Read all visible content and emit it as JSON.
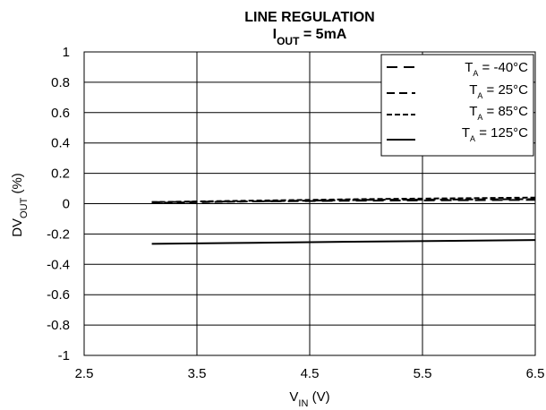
{
  "chart_data": {
    "type": "line",
    "title_line1": "LINE REGULATION",
    "title_line2": {
      "main": "I",
      "sub": "OUT",
      "rest": " = 5mA"
    },
    "xlabel": {
      "main": "V",
      "sub": "IN",
      "rest": " (V)"
    },
    "ylabel": {
      "main": "DV",
      "sub": "OUT",
      "rest": " (%)"
    },
    "xlim": [
      2.5,
      6.5
    ],
    "ylim": [
      -1,
      1
    ],
    "xticks": [
      2.5,
      3.5,
      4.5,
      5.5,
      6.5
    ],
    "xtick_labels": [
      "2.5",
      "3.5",
      "4.5",
      "5.5",
      "6.5"
    ],
    "yticks": [
      1,
      0.8,
      0.6,
      0.4,
      0.2,
      0,
      -0.2,
      -0.4,
      -0.6,
      -0.8,
      -1
    ],
    "ytick_labels": [
      "1",
      "0.8",
      "0.6",
      "0.4",
      "0.2",
      "0",
      "-0.2",
      "-0.4",
      "-0.6",
      "-0.8",
      "-1"
    ],
    "grid": true,
    "legend_position": "top-right",
    "series": [
      {
        "name": {
          "main": "T",
          "sub": "A",
          "rest": " = -40°C"
        },
        "style": "long-dash",
        "x": [
          3.1,
          4.0,
          5.0,
          6.5
        ],
        "y": [
          0.01,
          0.015,
          0.02,
          0.025
        ]
      },
      {
        "name": {
          "main": "T",
          "sub": "A",
          "rest": " = 25°C"
        },
        "style": "medium-dash",
        "x": [
          3.1,
          4.0,
          5.0,
          6.5
        ],
        "y": [
          0.005,
          0.015,
          0.025,
          0.03
        ]
      },
      {
        "name": {
          "main": "T",
          "sub": "A",
          "rest": " = 85°C"
        },
        "style": "short-dash",
        "x": [
          3.1,
          4.0,
          5.0,
          6.5
        ],
        "y": [
          0.01,
          0.02,
          0.03,
          0.04
        ]
      },
      {
        "name": {
          "main": "T",
          "sub": "A",
          "rest": " = 125°C"
        },
        "style": "solid",
        "x": [
          3.1,
          4.0,
          5.0,
          6.5
        ],
        "y": [
          -0.265,
          -0.258,
          -0.25,
          -0.24
        ]
      }
    ]
  }
}
